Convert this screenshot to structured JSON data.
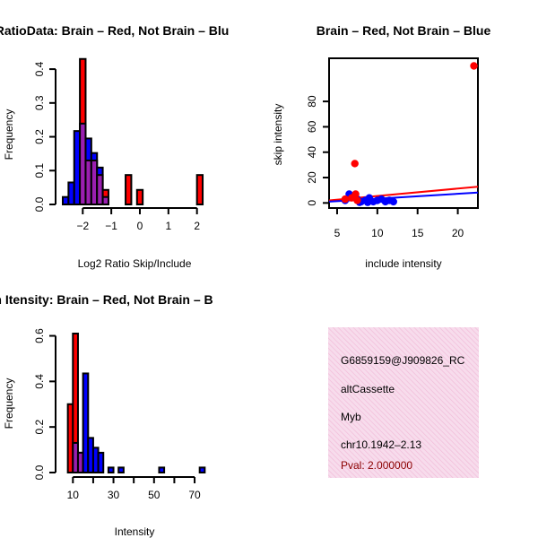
{
  "colors": {
    "brain": "#ff0000",
    "not_brain": "#0000ff",
    "overlap": "#9a1fb0",
    "info_bg": "#f7dcec",
    "info_hatch": "#ec9cc6",
    "pval": "#8b0000"
  },
  "chart_data": [
    {
      "id": "ratio_hist",
      "type": "bar",
      "title": "RatioData: Brain – Red, Not Brain – Blu",
      "xlabel": "Log2 Ratio Skip/Include",
      "ylabel": "Frequency",
      "xlim": [
        -2.7,
        2.45
      ],
      "ylim": [
        0,
        0.44
      ],
      "xticks": [
        -2,
        -1,
        0,
        1,
        2
      ],
      "xtick_labels": [
        "−2",
        "−1",
        "0",
        "1",
        "2"
      ],
      "yticks": [
        0.0,
        0.1,
        0.2,
        0.3,
        0.4
      ],
      "ytick_labels": [
        "0.0",
        "0.1",
        "0.2",
        "0.3",
        "0.4"
      ],
      "bin_width": 0.2,
      "series": [
        {
          "name": "Not Brain",
          "color": "blue",
          "bins": [
            {
              "x0": -2.7,
              "v": 0.022
            },
            {
              "x0": -2.5,
              "v": 0.065
            },
            {
              "x0": -2.3,
              "v": 0.217
            },
            {
              "x0": -2.1,
              "v": 0.239
            },
            {
              "x0": -1.9,
              "v": 0.195
            },
            {
              "x0": -1.7,
              "v": 0.152
            },
            {
              "x0": -1.5,
              "v": 0.109
            },
            {
              "x0": -1.3,
              "v": 0.022
            }
          ]
        },
        {
          "name": "Brain",
          "color": "red",
          "bins": [
            {
              "x0": -2.1,
              "v": 0.43
            },
            {
              "x0": -1.9,
              "v": 0.13
            },
            {
              "x0": -1.7,
              "v": 0.13
            },
            {
              "x0": -1.5,
              "v": 0.087
            },
            {
              "x0": -1.3,
              "v": 0.043
            },
            {
              "x0": -0.5,
              "v": 0.087
            },
            {
              "x0": -0.1,
              "v": 0.043
            },
            {
              "x0": 2.0,
              "v": 0.087
            }
          ]
        }
      ]
    },
    {
      "id": "scatter",
      "type": "scatter",
      "title": "Brain – Red, Not Brain – Blue",
      "xlabel": "include intensity",
      "ylabel": "skip intensity",
      "xlim": [
        4,
        22.5
      ],
      "ylim": [
        -4,
        114
      ],
      "xticks": [
        5,
        10,
        15,
        20
      ],
      "yticks": [
        0,
        20,
        40,
        60,
        80
      ],
      "series": [
        {
          "name": "Brain",
          "color": "red",
          "points": [
            [
              22.0,
              108
            ],
            [
              7.2,
              31
            ],
            [
              7.3,
              7
            ],
            [
              6.8,
              4
            ],
            [
              6.0,
              3
            ],
            [
              7.5,
              2
            ]
          ],
          "fit_line": [
            [
              4,
              2.0
            ],
            [
              22.5,
              12.8
            ]
          ]
        },
        {
          "name": "Not Brain",
          "color": "blue",
          "points": [
            [
              6.0,
              2
            ],
            [
              6.5,
              7
            ],
            [
              7.0,
              5
            ],
            [
              7.5,
              3
            ],
            [
              8.0,
              1
            ],
            [
              8.5,
              2
            ],
            [
              9.0,
              4
            ],
            [
              9.5,
              1
            ],
            [
              10.0,
              2
            ],
            [
              10.5,
              3
            ],
            [
              11.0,
              1
            ],
            [
              11.5,
              2
            ],
            [
              12.0,
              1
            ],
            [
              7.8,
              0.5
            ],
            [
              8.8,
              0.5
            ]
          ],
          "fit_line": [
            [
              4,
              1.0
            ],
            [
              22.5,
              8.2
            ]
          ]
        }
      ]
    },
    {
      "id": "intensity_hist",
      "type": "bar",
      "title": "Exon Inclusion Itensity: Brain – Red, Not Brain – B",
      "xlabel": "Intensity",
      "ylabel": "Frequency",
      "xlim": [
        5,
        77.5
      ],
      "ylim": [
        0,
        0.61
      ],
      "xticks": [
        10,
        30,
        50,
        70
      ],
      "minor_xticks": [
        20,
        40,
        60
      ],
      "yticks": [
        0.0,
        0.2,
        0.4,
        0.6
      ],
      "ytick_labels": [
        "0.0",
        "0.2",
        "0.4",
        "0.6"
      ],
      "bin_width": 2.5,
      "series": [
        {
          "name": "Not Brain",
          "color": "blue",
          "bins": [
            {
              "x0": 10,
              "v": 0.13
            },
            {
              "x0": 12.5,
              "v": 0.087
            },
            {
              "x0": 15,
              "v": 0.435
            },
            {
              "x0": 17.5,
              "v": 0.152
            },
            {
              "x0": 20,
              "v": 0.109
            },
            {
              "x0": 22.5,
              "v": 0.087
            },
            {
              "x0": 27.5,
              "v": 0.022
            },
            {
              "x0": 32.5,
              "v": 0.022
            },
            {
              "x0": 52.5,
              "v": 0.022
            },
            {
              "x0": 72.5,
              "v": 0.022
            }
          ]
        },
        {
          "name": "Brain",
          "color": "red",
          "bins": [
            {
              "x0": 7.5,
              "v": 0.3
            },
            {
              "x0": 10,
              "v": 0.61
            },
            {
              "x0": 12.5,
              "v": 0.087
            }
          ]
        }
      ]
    }
  ],
  "info": {
    "lines": [
      "G6859159@J909826_RC",
      "altCassette",
      "Myb",
      "chr10.1942–2.13"
    ],
    "pval": "Pval: 2.000000"
  }
}
